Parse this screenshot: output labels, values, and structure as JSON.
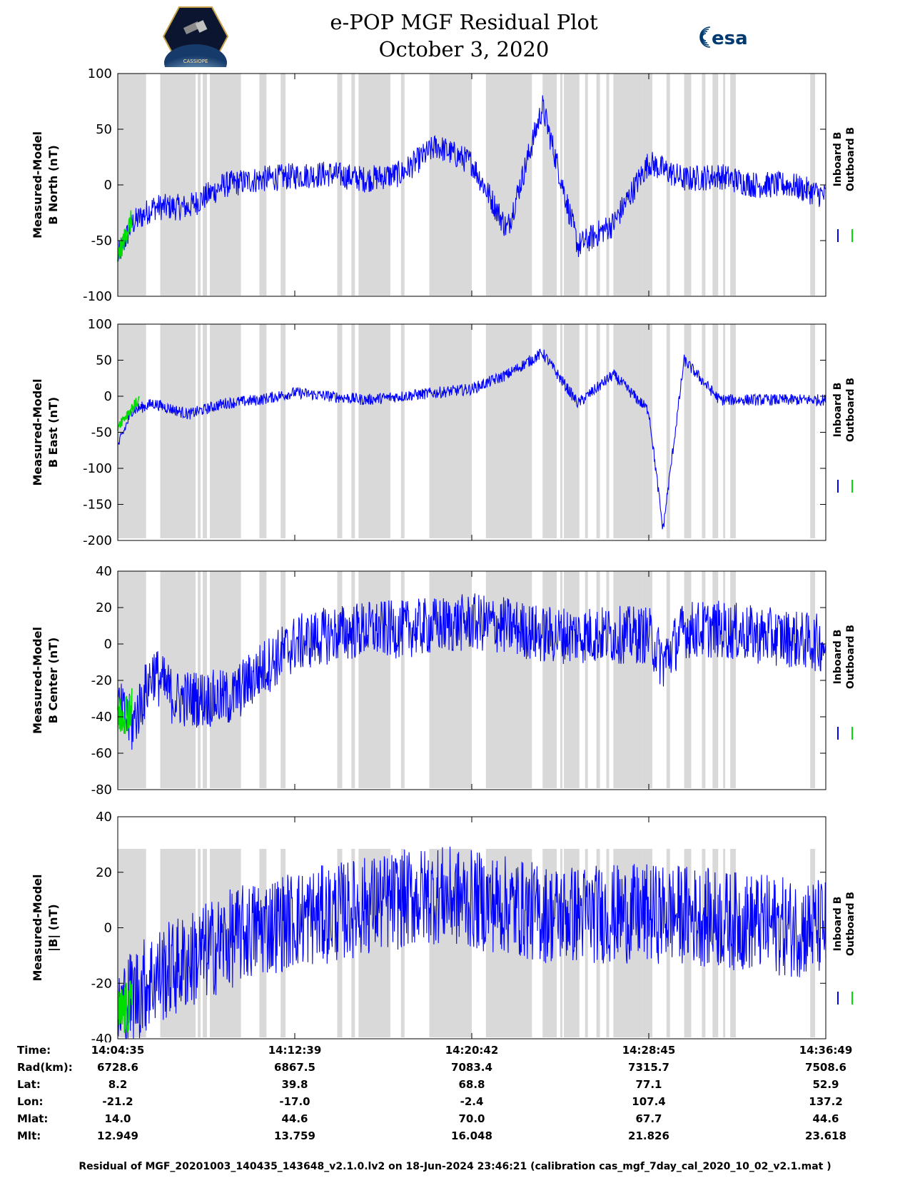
{
  "header": {
    "title_line1": "e-POP MGF Residual Plot",
    "title_line2": "October 3, 2020",
    "logo_left_text": "CASSIOPE",
    "logo_right_text": "esa"
  },
  "colors": {
    "inboard": "#0000ff",
    "outboard": "#00dd00",
    "shade": "#d9d9d9"
  },
  "chart_data": [
    {
      "type": "line",
      "ylabel_line1": "Measured-Model",
      "ylabel_line2": "B North (nT)",
      "ylim": [
        -100,
        100
      ],
      "yticks": [
        100,
        50,
        0,
        -50,
        -100
      ],
      "series": [
        {
          "name": "Inboard B",
          "x": [
            0,
            0.02,
            0.05,
            0.1,
            0.15,
            0.2,
            0.25,
            0.3,
            0.35,
            0.4,
            0.45,
            0.5,
            0.55,
            0.6,
            0.65,
            0.7,
            0.75,
            0.8,
            0.85,
            0.9,
            0.95,
            1.0
          ],
          "y": [
            -65,
            -35,
            -20,
            -20,
            0,
            5,
            8,
            10,
            5,
            10,
            35,
            20,
            -40,
            70,
            -55,
            -35,
            20,
            5,
            8,
            0,
            0,
            -10
          ],
          "noise": 12
        },
        {
          "name": "Outboard B",
          "x": [
            0,
            0.02
          ],
          "y": [
            -65,
            -30
          ],
          "noise": 10
        }
      ]
    },
    {
      "type": "line",
      "ylabel_line1": "Measured-Model",
      "ylabel_line2": "B East (nT)",
      "ylim": [
        -200,
        100
      ],
      "yticks": [
        100,
        50,
        0,
        -50,
        -100,
        -150,
        -200
      ],
      "series": [
        {
          "name": "Inboard B",
          "x": [
            0,
            0.02,
            0.05,
            0.1,
            0.15,
            0.2,
            0.25,
            0.3,
            0.35,
            0.4,
            0.45,
            0.5,
            0.55,
            0.6,
            0.65,
            0.7,
            0.75,
            0.77,
            0.8,
            0.85,
            0.9,
            0.95,
            1.0
          ],
          "y": [
            -70,
            -20,
            -10,
            -25,
            -10,
            -5,
            5,
            0,
            -5,
            0,
            5,
            10,
            30,
            60,
            -10,
            30,
            -20,
            -185,
            50,
            -5,
            -5,
            -5,
            -5
          ],
          "noise": 8
        },
        {
          "name": "Outboard B",
          "x": [
            0,
            0.03
          ],
          "y": [
            -40,
            -5
          ],
          "noise": 8
        }
      ]
    },
    {
      "type": "line",
      "ylabel_line1": "Measured-Model",
      "ylabel_line2": "B Center (nT)",
      "ylim": [
        -80,
        40
      ],
      "yticks": [
        40,
        20,
        0,
        -20,
        -40,
        -60,
        -80
      ],
      "series": [
        {
          "name": "Inboard B",
          "x": [
            0,
            0.02,
            0.05,
            0.08,
            0.12,
            0.16,
            0.2,
            0.25,
            0.3,
            0.35,
            0.4,
            0.45,
            0.5,
            0.55,
            0.6,
            0.65,
            0.7,
            0.75,
            0.77,
            0.8,
            0.85,
            0.9,
            0.95,
            1.0
          ],
          "y": [
            -35,
            -45,
            -15,
            -30,
            -30,
            -30,
            -15,
            0,
            5,
            8,
            8,
            10,
            12,
            10,
            5,
            5,
            5,
            5,
            -10,
            8,
            8,
            5,
            3,
            0
          ],
          "noise": 16
        },
        {
          "name": "Outboard B",
          "x": [
            0,
            0.02
          ],
          "y": [
            -40,
            -35
          ],
          "noise": 12
        }
      ]
    },
    {
      "type": "line",
      "ylabel_line1": "Measured-Model",
      "ylabel_line2": "|B| (nT)",
      "ylim": [
        -40,
        40
      ],
      "yticks": [
        40,
        20,
        0,
        -20,
        -40
      ],
      "series": [
        {
          "name": "Inboard B",
          "x": [
            0,
            0.02,
            0.05,
            0.1,
            0.15,
            0.2,
            0.25,
            0.3,
            0.35,
            0.4,
            0.45,
            0.5,
            0.55,
            0.6,
            0.65,
            0.7,
            0.75,
            0.8,
            0.85,
            0.9,
            0.95,
            1.0
          ],
          "y": [
            -30,
            -25,
            -18,
            -12,
            -5,
            0,
            3,
            5,
            8,
            10,
            12,
            10,
            8,
            5,
            5,
            5,
            5,
            5,
            3,
            2,
            0,
            0
          ],
          "noise": 18
        },
        {
          "name": "Outboard B",
          "x": [
            0,
            0.02
          ],
          "y": [
            -32,
            -28
          ],
          "noise": 10
        }
      ]
    }
  ],
  "shaded_intervals": [
    [
      0.0,
      0.04
    ],
    [
      0.06,
      0.11
    ],
    [
      0.113,
      0.117
    ],
    [
      0.12,
      0.126
    ],
    [
      0.13,
      0.174
    ],
    [
      0.2,
      0.21
    ],
    [
      0.23,
      0.237
    ],
    [
      0.31,
      0.317
    ],
    [
      0.33,
      0.335
    ],
    [
      0.34,
      0.385
    ],
    [
      0.4,
      0.405
    ],
    [
      0.44,
      0.5
    ],
    [
      0.52,
      0.585
    ],
    [
      0.6,
      0.62
    ],
    [
      0.625,
      0.628
    ],
    [
      0.63,
      0.652
    ],
    [
      0.66,
      0.664
    ],
    [
      0.676,
      0.681
    ],
    [
      0.69,
      0.694
    ],
    [
      0.7,
      0.74
    ],
    [
      0.74,
      0.755
    ],
    [
      0.775,
      0.78
    ],
    [
      0.8,
      0.81
    ],
    [
      0.825,
      0.83
    ],
    [
      0.84,
      0.848
    ],
    [
      0.855,
      0.858
    ],
    [
      0.865,
      0.873
    ],
    [
      0.978,
      0.985
    ]
  ],
  "legend": {
    "inboard": "Inboard B",
    "outboard": "Outboard B"
  },
  "info": {
    "labels": [
      "Time:",
      "Rad(km):",
      "Lat:",
      "Lon:",
      "Mlat:",
      "Mlt:"
    ],
    "columns": [
      [
        "14:04:35",
        "6728.6",
        "8.2",
        "-21.2",
        "14.0",
        "12.949"
      ],
      [
        "14:12:39",
        "6867.5",
        "39.8",
        "-17.0",
        "44.6",
        "13.759"
      ],
      [
        "14:20:42",
        "7083.4",
        "68.8",
        "-2.4",
        "70.0",
        "16.048"
      ],
      [
        "14:28:45",
        "7315.7",
        "77.1",
        "107.4",
        "67.7",
        "21.826"
      ],
      [
        "14:36:49",
        "7508.6",
        "52.9",
        "137.2",
        "44.6",
        "23.618"
      ]
    ]
  },
  "footer": "Residual of MGF_20201003_140435_143648_v2.1.0.lv2 on 18-Jun-2024 23:46:21 (calibration cas_mgf_7day_cal_2020_10_02_v2.1.mat )"
}
